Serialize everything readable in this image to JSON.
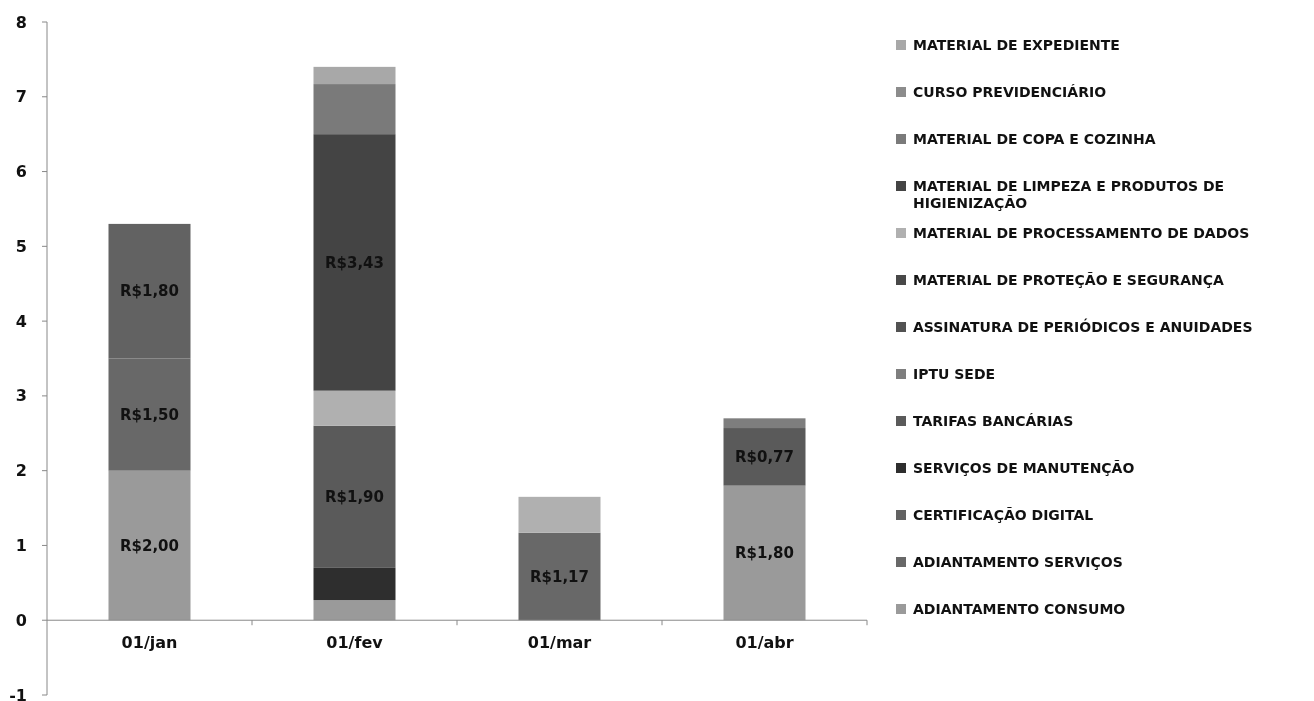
{
  "chart_data": {
    "type": "bar",
    "stacked": true,
    "categories": [
      "01/jan",
      "01/fev",
      "01/mar",
      "01/abr"
    ],
    "ylim": [
      -1,
      8
    ],
    "yticks": [
      -1,
      0,
      1,
      2,
      3,
      4,
      5,
      6,
      7,
      8
    ],
    "grid": false,
    "legend": "right",
    "series": [
      {
        "name": "ADIANTAMENTO CONSUMO",
        "color": "#9a9a9a",
        "values": [
          2.0,
          0.27,
          null,
          1.8
        ],
        "value_labels": [
          "R$2,00",
          null,
          null,
          "R$1,80"
        ]
      },
      {
        "name": "ADIANTAMENTO SERVIÇOS",
        "color": "#686868",
        "values": [
          1.5,
          null,
          1.17,
          null
        ],
        "value_labels": [
          "R$1,50",
          null,
          "R$1,17",
          null
        ]
      },
      {
        "name": "CERTIFICAÇÃO DIGITAL",
        "color": "#626262",
        "values": [
          1.8,
          null,
          null,
          null
        ],
        "value_labels": [
          "R$1,80",
          null,
          null,
          null
        ]
      },
      {
        "name": "SERVIÇOS DE MANUTENÇÃO",
        "color": "#2e2e2e",
        "values": [
          null,
          0.43,
          null,
          null
        ]
      },
      {
        "name": "TARIFAS BANCÁRIAS",
        "color": "#5a5a5a",
        "values": [
          null,
          1.9,
          null,
          0.77
        ],
        "value_labels": [
          null,
          "R$1,90",
          null,
          "R$0,77"
        ]
      },
      {
        "name": "IPTU SEDE",
        "color": "#7e7e7e",
        "values": [
          null,
          null,
          null,
          0.13
        ]
      },
      {
        "name": "ASSINATURA DE PERIÓDICOS E ANUIDADES",
        "color": "#525252",
        "values": [
          null,
          null,
          null,
          null
        ]
      },
      {
        "name": "MATERIAL DE PROTEÇÃO E SEGURANÇA",
        "color": "#484848",
        "values": [
          null,
          null,
          null,
          null
        ]
      },
      {
        "name": "MATERIAL DE PROCESSAMENTO DE DADOS",
        "color": "#b0b0b0",
        "values": [
          null,
          0.47,
          0.48,
          null
        ]
      },
      {
        "name": "MATERIAL DE LIMPEZA E PRODUTOS DE HIGIENIZAÇÃO",
        "color": "#444444",
        "values": [
          null,
          3.43,
          null,
          null
        ],
        "value_labels": [
          null,
          "R$3,43",
          null,
          null
        ]
      },
      {
        "name": "MATERIAL DE COPA E COZINHA",
        "color": "#7a7a7a",
        "values": [
          null,
          0.67,
          null,
          null
        ]
      },
      {
        "name": "CURSO PREVIDENCIÁRIO",
        "color": "#8c8c8c",
        "values": [
          null,
          null,
          null,
          null
        ]
      },
      {
        "name": "MATERIAL DE EXPEDIENTE",
        "color": "#a8a8a8",
        "values": [
          null,
          0.23,
          null,
          null
        ]
      }
    ]
  }
}
